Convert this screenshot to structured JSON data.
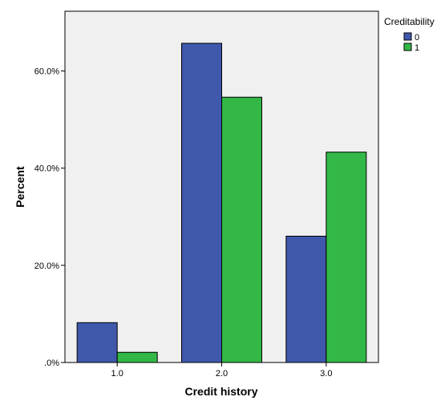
{
  "chart_data": {
    "type": "bar",
    "title": "",
    "xlabel": "Credit history",
    "ylabel": "Percent",
    "categories": [
      "1.0",
      "2.0",
      "3.0"
    ],
    "series": [
      {
        "name": "0",
        "values": [
          8.2,
          65.7,
          26.0
        ],
        "color": "#3f58ab"
      },
      {
        "name": "1",
        "values": [
          2.1,
          54.6,
          43.3
        ],
        "color": "#33b847"
      }
    ],
    "yticks": [
      {
        "value": 0,
        "label": ".0%"
      },
      {
        "value": 20,
        "label": "20.0%"
      },
      {
        "value": 40,
        "label": "40.0%"
      },
      {
        "value": 60,
        "label": "60.0%"
      }
    ],
    "ylim": [
      0,
      72.3
    ],
    "grid": false,
    "legend": {
      "title": "Creditability",
      "position": "top-right"
    },
    "colors": {
      "plot_background": "#f0f0f0",
      "axis": "#000000"
    }
  }
}
